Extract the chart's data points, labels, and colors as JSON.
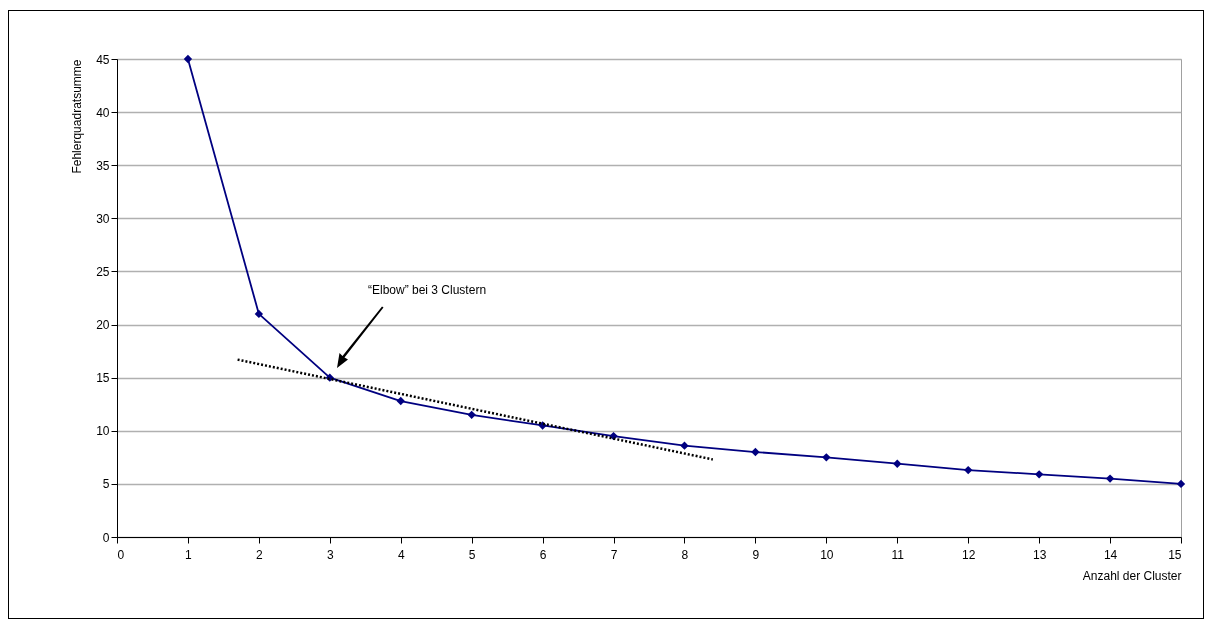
{
  "chart_data": {
    "type": "line",
    "xlabel": "Anzahl der Cluster",
    "ylabel": "Fehlerquadratsumme",
    "x": [
      1,
      2,
      3,
      4,
      5,
      6,
      7,
      8,
      9,
      10,
      11,
      12,
      13,
      14,
      15
    ],
    "series": [
      {
        "color": "#000080",
        "values": [
          45,
          21,
          15,
          12.8,
          11.5,
          10.5,
          9.5,
          8.6,
          8.0,
          7.5,
          6.9,
          6.3,
          5.9,
          5.5,
          5.0
        ]
      },
      {
        "type": "line",
        "x": [
          1.7,
          8.4
        ],
        "color": "#000000",
        "values": [
          16.7,
          7.3
        ],
        "marker": "none",
        "line_style": "dotted"
      }
    ],
    "annotations": [
      "“Elbow” bei 3 Clustern"
    ],
    "xlim": [
      0,
      15
    ],
    "xticks": [
      0,
      1,
      2,
      3,
      4,
      5,
      6,
      7,
      8,
      9,
      10,
      11,
      12,
      13,
      14,
      15
    ],
    "ylim": [
      0,
      45
    ],
    "yticks": [
      0,
      5,
      10,
      15,
      20,
      25,
      30,
      35,
      40,
      45
    ],
    "grid": "y",
    "marker": "diamond"
  }
}
